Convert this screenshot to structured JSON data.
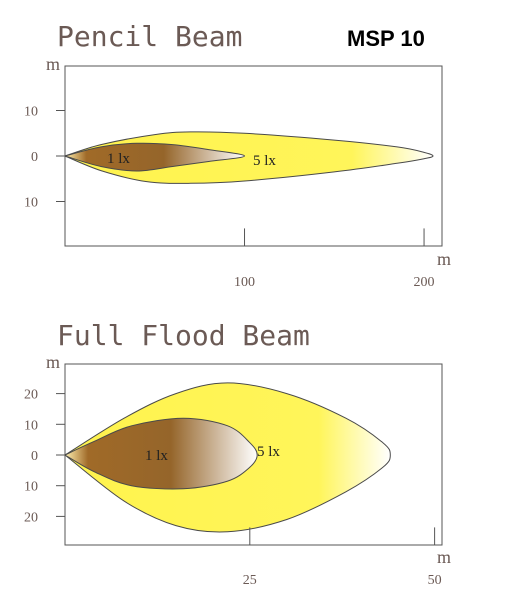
{
  "brand_label": "MSP 10",
  "chart_data": [
    {
      "type": "area",
      "title": "Pencil Beam",
      "xlabel": "m",
      "ylabel": "m",
      "xlim": [
        0,
        210
      ],
      "ylim": [
        -20,
        20
      ],
      "x_ticks": [
        100,
        200
      ],
      "x_tick_labels": [
        "100",
        "200"
      ],
      "y_ticks": [
        10,
        0,
        -10
      ],
      "y_tick_labels": [
        "10",
        "0",
        "10"
      ],
      "series": [
        {
          "name": "1 lx",
          "color": "#fff34d",
          "outline": [
            [
              0,
              0
            ],
            [
              20,
              2.5
            ],
            [
              50,
              4.7
            ],
            [
              70,
              5.3
            ],
            [
              100,
              5
            ],
            [
              150,
              3.5
            ],
            [
              185,
              2
            ],
            [
              200,
              0.8
            ],
            [
              205,
              0
            ],
            [
              200,
              -0.6
            ],
            [
              185,
              -1.6
            ],
            [
              150,
              -3.5
            ],
            [
              100,
              -5.5
            ],
            [
              70,
              -6
            ],
            [
              45,
              -5.6
            ],
            [
              20,
              -3.2
            ],
            [
              0,
              0
            ]
          ]
        },
        {
          "name": "5 lx",
          "color": "#9a6a2a",
          "outline": [
            [
              0,
              0
            ],
            [
              20,
              2
            ],
            [
              40,
              2.8
            ],
            [
              60,
              2.5
            ],
            [
              80,
              1.4
            ],
            [
              100,
              0
            ],
            [
              80,
              -1.2
            ],
            [
              60,
              -2.3
            ],
            [
              40,
              -3.3
            ],
            [
              20,
              -2.3
            ],
            [
              0,
              0
            ]
          ]
        }
      ]
    },
    {
      "type": "area",
      "title": "Full Flood Beam",
      "xlabel": "m",
      "ylabel": "m",
      "xlim": [
        0,
        51
      ],
      "ylim": [
        -30,
        30
      ],
      "x_ticks": [
        25,
        50
      ],
      "x_tick_labels": [
        "25",
        "50"
      ],
      "y_ticks": [
        20,
        10,
        0,
        -10,
        -20
      ],
      "y_tick_labels": [
        "20",
        "10",
        "0",
        "10",
        "20"
      ],
      "series": [
        {
          "name": "1 lx",
          "color": "#fff34d",
          "outline": [
            [
              0,
              0
            ],
            [
              8,
              12
            ],
            [
              15,
              20
            ],
            [
              22,
              23.5
            ],
            [
              30,
              20
            ],
            [
              38,
              12
            ],
            [
              43,
              4
            ],
            [
              44,
              0
            ],
            [
              43,
              -4
            ],
            [
              38,
              -12
            ],
            [
              30,
              -21
            ],
            [
              22,
              -25
            ],
            [
              15,
              -23
            ],
            [
              8,
              -15
            ],
            [
              0,
              0
            ]
          ]
        },
        {
          "name": "5 lx",
          "color": "#9a6a2a",
          "outline": [
            [
              0,
              0
            ],
            [
              4,
              4.5
            ],
            [
              9,
              9.5
            ],
            [
              16,
              12
            ],
            [
              22,
              9.5
            ],
            [
              25,
              4
            ],
            [
              26,
              0
            ],
            [
              25,
              -4
            ],
            [
              22,
              -8.5
            ],
            [
              16,
              -11
            ],
            [
              9,
              -10
            ],
            [
              4,
              -5.5
            ],
            [
              0,
              0
            ]
          ]
        }
      ]
    }
  ]
}
